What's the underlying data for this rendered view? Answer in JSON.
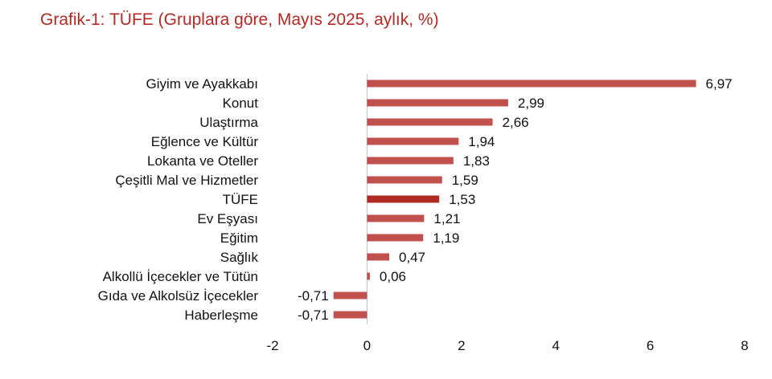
{
  "title": "Grafik-1: TÜFE (Gruplara göre, Mayıs 2025, aylık, %)",
  "colors": {
    "title": "#b22a24",
    "bar": "#c0504d",
    "highlight_bar": "#b22a24"
  },
  "chart_data": {
    "type": "bar",
    "orientation": "horizontal",
    "title": "Grafik-1: TÜFE (Gruplara göre, Mayıs 2025, aylık, %)",
    "xlabel": "",
    "ylabel": "",
    "xlim": [
      -2,
      8
    ],
    "xticks": [
      -2,
      0,
      2,
      4,
      6,
      8
    ],
    "grid": false,
    "legend": "none",
    "highlight": "TÜFE",
    "categories": [
      "Giyim ve Ayakkabı",
      "Konut",
      "Ulaştırma",
      "Eğlence ve Kültür",
      "Lokanta ve Oteller",
      "Çeşitli Mal ve Hizmetler",
      "TÜFE",
      "Ev Eşyası",
      "Eğitim",
      "Sağlık",
      "Alkollü İçecekler ve Tütün",
      "Gıda ve Alkolsüz İçecekler",
      "Haberleşme"
    ],
    "values": [
      6.97,
      2.99,
      2.66,
      1.94,
      1.83,
      1.59,
      1.53,
      1.21,
      1.19,
      0.47,
      0.06,
      -0.71,
      -0.71
    ],
    "value_labels": [
      "6,97",
      "2,99",
      "2,66",
      "1,94",
      "1,83",
      "1,59",
      "1,53",
      "1,21",
      "1,19",
      "0,47",
      "0,06",
      "-0,71",
      "-0,71"
    ],
    "tick_labels": [
      "-2",
      "0",
      "2",
      "4",
      "6",
      "8"
    ]
  }
}
